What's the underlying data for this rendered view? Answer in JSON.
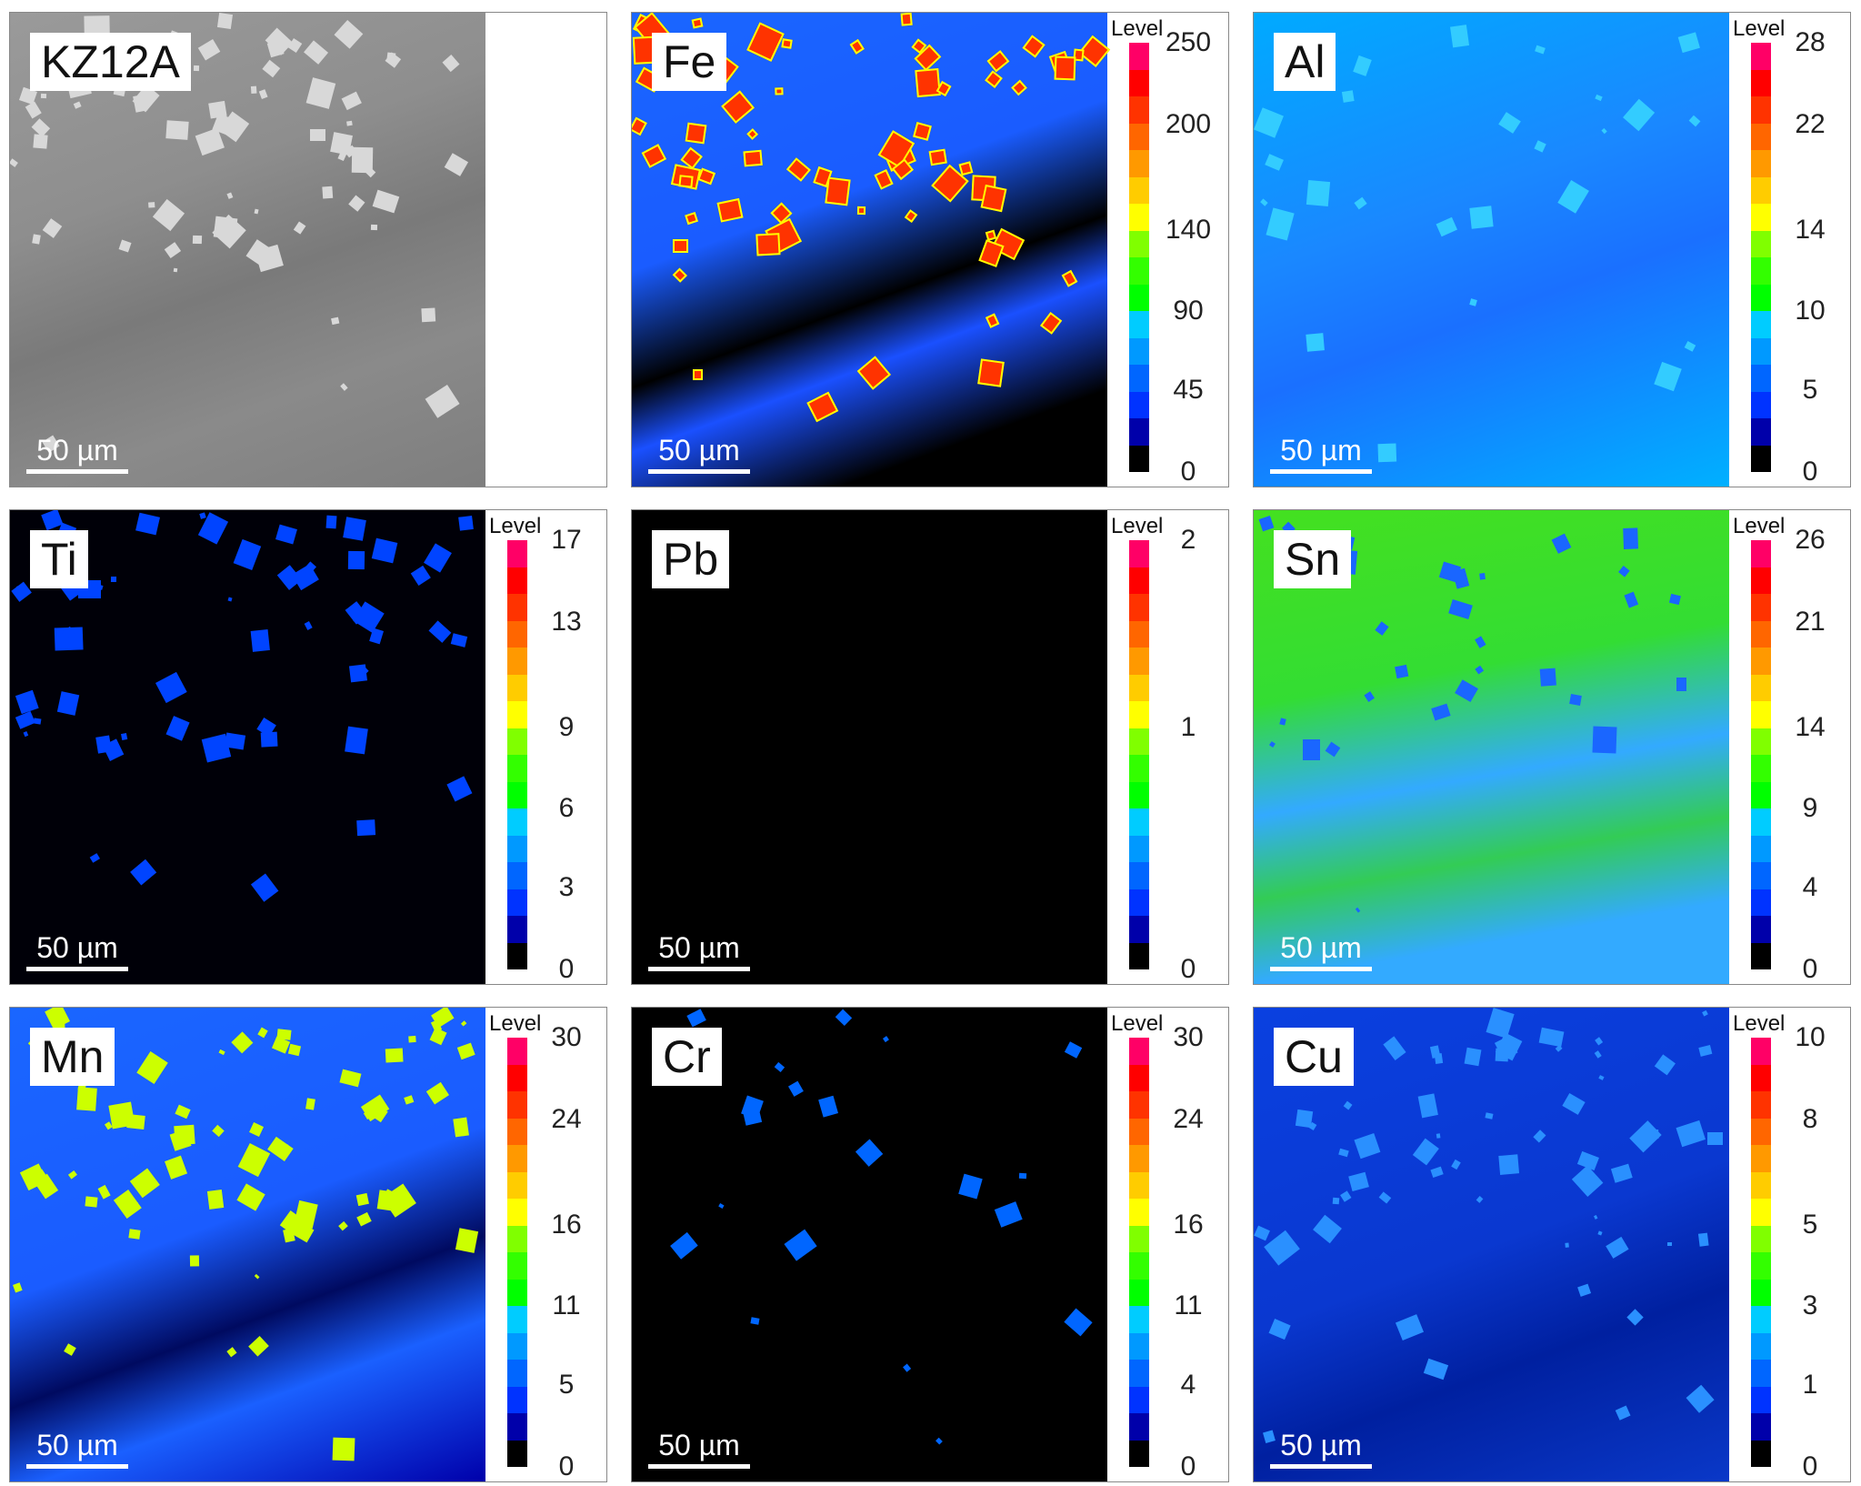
{
  "figure": {
    "legend_title": "Level",
    "scale_label": "50 µm",
    "colorbar_colors": [
      "#ff0066",
      "#ff0000",
      "#ff3300",
      "#ff6600",
      "#ff9900",
      "#ffcc00",
      "#ffff00",
      "#80ff00",
      "#33ff00",
      "#00ff00",
      "#00ccff",
      "#0099ff",
      "#0066ff",
      "#0033ff",
      "#0000aa",
      "#000000"
    ],
    "panels": [
      {
        "label": "KZ12A",
        "type": "sem",
        "ticks": []
      },
      {
        "label": "Fe",
        "type": "fe",
        "ticks": [
          "250",
          "200",
          "140",
          "90",
          "45",
          "0"
        ]
      },
      {
        "label": "Al",
        "type": "al",
        "ticks": [
          "28",
          "22",
          "14",
          "10",
          "5",
          "0"
        ]
      },
      {
        "label": "Ti",
        "type": "ti",
        "ticks": [
          "17",
          "13",
          "9",
          "6",
          "3",
          "0"
        ]
      },
      {
        "label": "Pb",
        "type": "pb",
        "ticks": [
          "2",
          "1",
          "0"
        ]
      },
      {
        "label": "Sn",
        "type": "sn",
        "ticks": [
          "26",
          "21",
          "14",
          "9",
          "4",
          "0"
        ]
      },
      {
        "label": "Mn",
        "type": "mn",
        "ticks": [
          "30",
          "24",
          "16",
          "11",
          "5",
          "0"
        ]
      },
      {
        "label": "Cr",
        "type": "cr",
        "ticks": [
          "30",
          "24",
          "16",
          "11",
          "4",
          "0"
        ]
      },
      {
        "label": "Cu",
        "type": "cu",
        "ticks": [
          "10",
          "8",
          "5",
          "3",
          "1",
          "0"
        ]
      }
    ]
  }
}
